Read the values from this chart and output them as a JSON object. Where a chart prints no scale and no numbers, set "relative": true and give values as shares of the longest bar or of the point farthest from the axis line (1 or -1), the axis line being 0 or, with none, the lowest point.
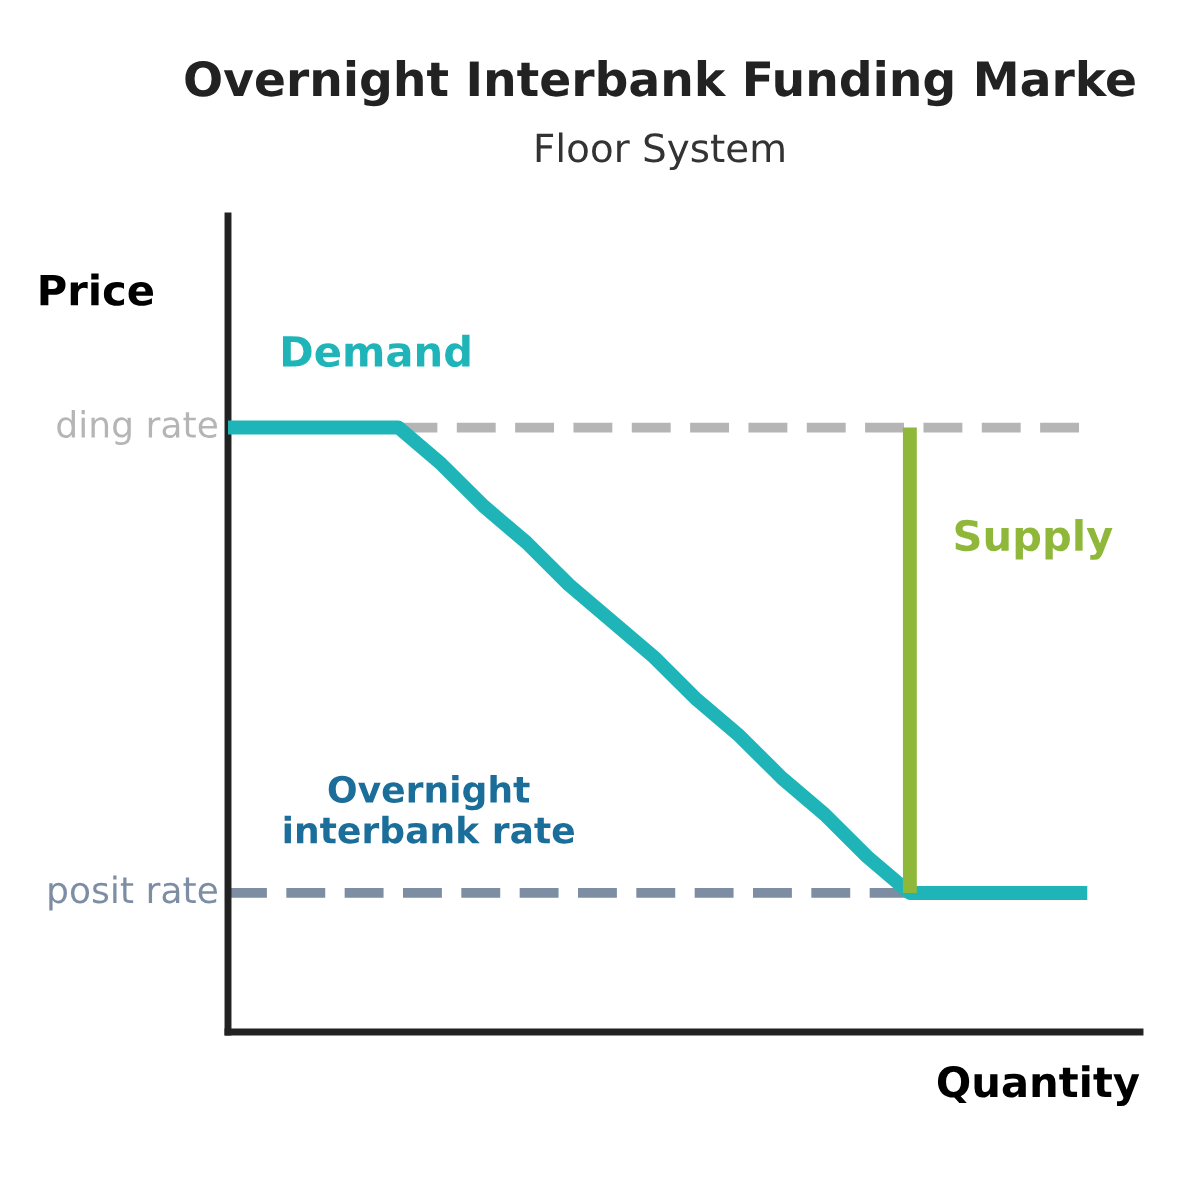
{
  "chart_data": {
    "type": "line",
    "title": "Overnight Interbank Funding Marke",
    "subtitle": "Floor System",
    "xlabel": "Quantity",
    "ylabel": "Price",
    "relative": true,
    "categories": [
      null,
      null,
      null,
      null,
      null,
      null,
      null,
      null,
      null,
      null,
      null,
      null,
      null,
      null,
      null,
      null,
      null,
      null,
      null,
      null,
      null
    ],
    "series": [
      {
        "name": "ding rate",
        "color": "#b5b5b5",
        "line_style": "dashed",
        "values": [
          null,
          null,
          null,
          null,
          1,
          1,
          1,
          1,
          1,
          1,
          1,
          1,
          1,
          1,
          1,
          1,
          1,
          1,
          1,
          1,
          1
        ]
      },
      {
        "name": "posit rate",
        "color": "#7d8da3",
        "line_style": "dashed",
        "values": [
          0.23,
          0.23,
          0.23,
          0.23,
          0.23,
          0.23,
          0.23,
          0.23,
          0.23,
          0.23,
          0.23,
          0.23,
          0.23,
          0.23,
          0.23,
          0.23,
          0.23,
          null,
          null,
          null,
          null
        ]
      },
      {
        "name": "Demand",
        "color": "#1fb5b8",
        "values": [
          1,
          1,
          1,
          1,
          1,
          0.94,
          0.87,
          0.81,
          0.74,
          0.68,
          0.62,
          0.55,
          0.49,
          0.42,
          0.36,
          0.29,
          0.23,
          0.23,
          0.23,
          0.23,
          0.23
        ]
      }
    ],
    "annotations": [
      "Overnight\ninterbank rate",
      "Supply"
    ]
  }
}
